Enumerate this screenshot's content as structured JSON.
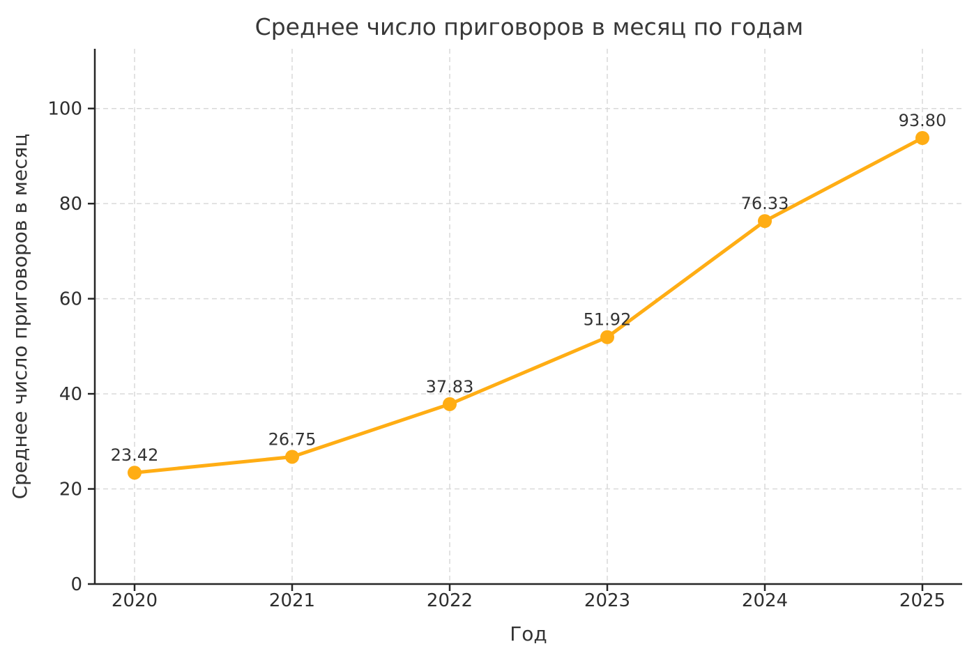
{
  "page": {
    "background_color": "#ffffff"
  },
  "chart_data": {
    "type": "line",
    "title": "Среднее число приговоров в месяц по годам",
    "xlabel": "Год",
    "ylabel": "Среднее число приговоров в месяц",
    "categories": [
      "2020",
      "2021",
      "2022",
      "2023",
      "2024",
      "2025"
    ],
    "series": [
      {
        "name": "Среднее число приговоров в месяц",
        "values": [
          23.42,
          26.75,
          37.83,
          51.92,
          76.33,
          93.8
        ],
        "point_labels": [
          "23.42",
          "26.75",
          "37.83",
          "51.92",
          "76.33",
          "93.80"
        ]
      }
    ],
    "yticks": [
      0,
      20,
      40,
      60,
      80,
      100
    ],
    "ylim": [
      0,
      112.56
    ],
    "grid": "dashed, both axes",
    "legend_position": "none",
    "line_color": "#FFAD14",
    "marker_color": "#FFAD14",
    "marker_style": "circle",
    "grid_color": "#d9d9d9",
    "spine_color": "#262626",
    "text_color": "#333333"
  }
}
